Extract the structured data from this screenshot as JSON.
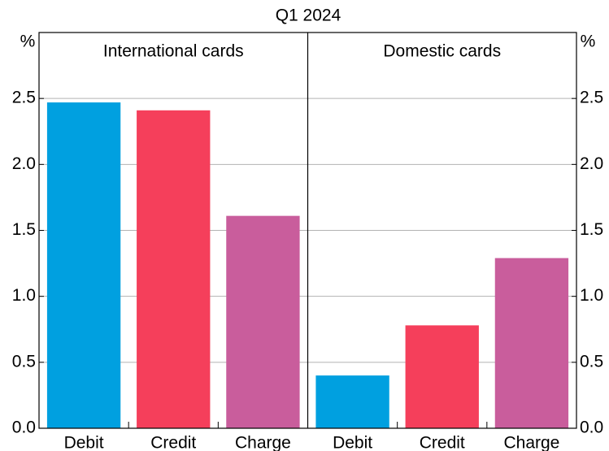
{
  "title": "Q1 2024",
  "chart_data": [
    {
      "type": "bar",
      "title": "International cards",
      "y_label": "%",
      "categories": [
        "Debit",
        "Credit",
        "Charge"
      ],
      "values": [
        2.47,
        2.41,
        1.61
      ],
      "colors": [
        "#00a0e0",
        "#f53f5b",
        "#c95d9c"
      ],
      "ylim": [
        0,
        3
      ],
      "yticks": [
        {
          "value": 0,
          "label": "0.0"
        },
        0.5,
        {
          "value": 1,
          "label": "1.0"
        },
        1.5,
        {
          "value": 2,
          "label": "2.0"
        },
        2.5
      ],
      "grid": true
    },
    {
      "type": "bar",
      "title": "Domestic cards",
      "y_label": "%",
      "categories": [
        "Debit",
        "Credit",
        "Charge"
      ],
      "values": [
        0.4,
        0.78,
        1.29
      ],
      "colors": [
        "#00a0e0",
        "#f53f5b",
        "#c95d9c"
      ],
      "ylim": [
        0,
        3
      ],
      "yticks": [
        {
          "value": 0,
          "label": "0.0"
        },
        0.5,
        {
          "value": 1,
          "label": "1.0"
        },
        1.5,
        {
          "value": 2,
          "label": "2.0"
        },
        2.5
      ],
      "grid": true
    }
  ]
}
